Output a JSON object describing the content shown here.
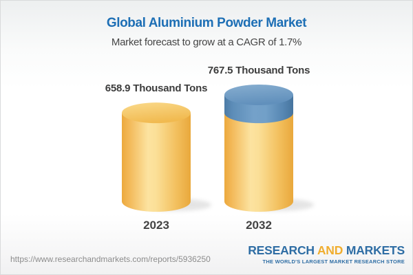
{
  "header": {
    "title": "Global Aluminium Powder Market",
    "subtitle": "Market forecast to grow at a CAGR of 1.7%"
  },
  "chart_data": {
    "type": "bar",
    "style": "3d-cylinder",
    "title": "Global Aluminium Powder Market",
    "subtitle": "Market forecast to grow at a CAGR of 1.7%",
    "cagr": "1.7%",
    "unit": "Thousand Tons",
    "categories": [
      "2023",
      "2032"
    ],
    "values": [
      658.9,
      767.5
    ],
    "value_labels": [
      "658.9 Thousand Tons",
      "767.5 Thousand Tons"
    ],
    "ylim": [
      0,
      767.5
    ],
    "legend": "none",
    "grid": "off",
    "highlight": {
      "bar": "2032",
      "segment_from": 658.9,
      "segment_to": 767.5,
      "color": "#6b99c4"
    },
    "bar_color": "#f5c767"
  },
  "colors": {
    "title_blue": "#1d6fb5",
    "bar_yellow": "#f5c767",
    "cap_blue": "#6b99c4",
    "logo_blue": "#2e6da4",
    "logo_orange": "#f0ad2e",
    "text_dark": "#3c3c3c",
    "url_gray": "#8c8c8c"
  },
  "footer": {
    "url": "https://www.researchandmarkets.com/reports/5936250",
    "logo": {
      "word1": "RESEARCH",
      "word2": "AND",
      "word3": "MARKETS",
      "tagline": "THE WORLD'S LARGEST MARKET RESEARCH STORE"
    }
  }
}
